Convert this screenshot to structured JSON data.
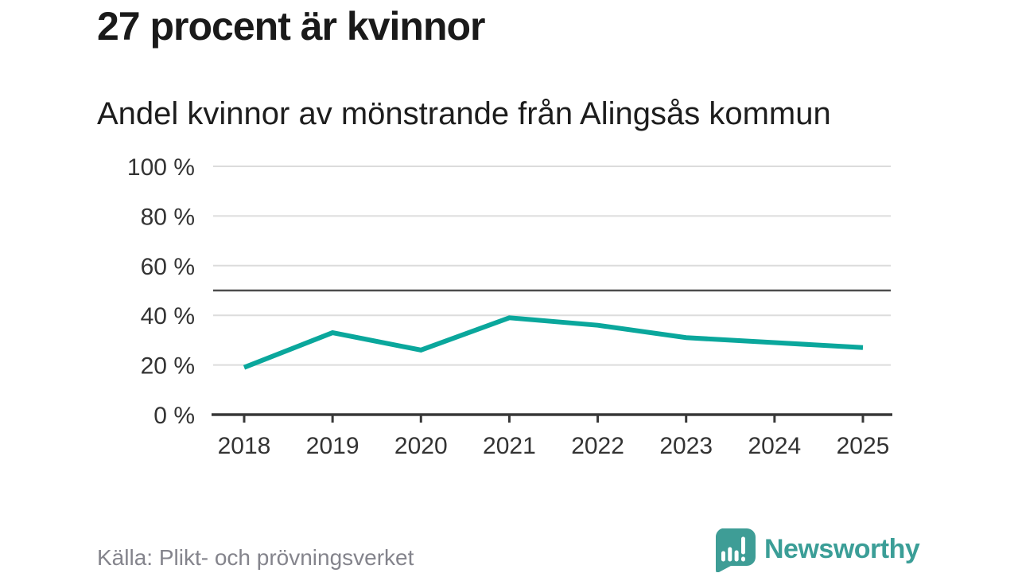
{
  "header": {
    "title": "27 procent är kvinnor",
    "subtitle": "Andel kvinnor av mönstrande från Alingsås kommun"
  },
  "chart_data": {
    "type": "line",
    "title": "27 procent är kvinnor",
    "subtitle": "Andel kvinnor av mönstrande från Alingsås kommun",
    "x": [
      2018,
      2019,
      2020,
      2021,
      2022,
      2023,
      2024,
      2025
    ],
    "series": [
      {
        "name": "Andel kvinnor av mönstrande",
        "values": [
          19,
          33,
          26,
          39,
          36,
          31,
          29,
          27
        ],
        "color": "#0aa79c"
      }
    ],
    "xlabel": "",
    "ylabel": "",
    "ylim": [
      0,
      100
    ],
    "yticks": [
      0,
      20,
      40,
      60,
      80,
      100
    ],
    "ytick_labels": [
      "0 %",
      "20 %",
      "40 %",
      "60 %",
      "80 %",
      "100 %"
    ],
    "reference_line_y": 50,
    "grid": true,
    "legend": "none",
    "colors": {
      "line": "#0aa79c",
      "reference_line": "#4d4d4d",
      "grid": "#dcdcdc",
      "axis": "#383838",
      "tick_label": "#333333"
    }
  },
  "footer": {
    "source": "Källa: Plikt- och prövningsverket",
    "brand": "Newsworthy",
    "brand_color": "#3b9e97",
    "logo_icon": "bar-chart-speech-bubble-icon"
  }
}
